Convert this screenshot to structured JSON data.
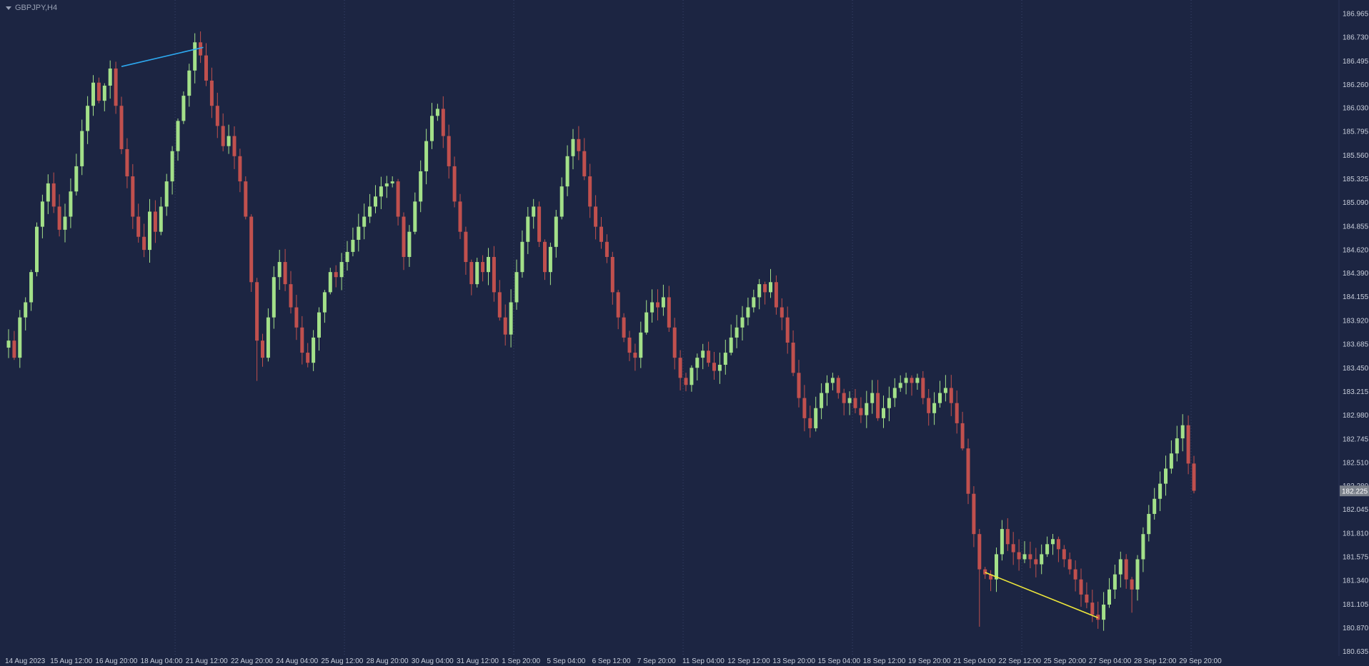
{
  "header": {
    "symbol_label": "GBPJPY,H4"
  },
  "colors": {
    "background": "#1c2542",
    "bull": "#a3e089",
    "bear": "#c0504e",
    "axis_text": "#c9cfdc",
    "separator": "#39446b",
    "axis_border": "#2a3457",
    "price_tag_bg": "#7c828c",
    "price_tag_text": "#ffffff"
  },
  "chart_data": {
    "type": "candlestick",
    "symbol": "GBPJPY",
    "timeframe": "H4",
    "title": "GBPJPY,H4",
    "visible_price_range": [
      180.59,
      187.1
    ],
    "current_price": "182.225",
    "price_axis_labels": [
      "186.965",
      "186.730",
      "186.495",
      "186.260",
      "186.030",
      "185.795",
      "185.560",
      "185.325",
      "185.090",
      "184.855",
      "184.620",
      "184.390",
      "184.155",
      "183.920",
      "183.685",
      "183.450",
      "183.215",
      "182.980",
      "182.745",
      "182.510",
      "182.280",
      "182.045",
      "181.810",
      "181.575",
      "181.340",
      "181.105",
      "180.870",
      "180.635"
    ],
    "time_axis_labels": [
      {
        "bar": 0,
        "text": "14 Aug 2023"
      },
      {
        "bar": 8,
        "text": "15 Aug 12:00"
      },
      {
        "bar": 16,
        "text": "16 Aug 20:00"
      },
      {
        "bar": 24,
        "text": "18 Aug 04:00"
      },
      {
        "bar": 32,
        "text": "21 Aug 12:00"
      },
      {
        "bar": 40,
        "text": "22 Aug 20:00"
      },
      {
        "bar": 48,
        "text": "24 Aug 04:00"
      },
      {
        "bar": 56,
        "text": "25 Aug 12:00"
      },
      {
        "bar": 64,
        "text": "28 Aug 20:00"
      },
      {
        "bar": 72,
        "text": "30 Aug 04:00"
      },
      {
        "bar": 80,
        "text": "31 Aug 12:00"
      },
      {
        "bar": 88,
        "text": "1 Sep 20:00"
      },
      {
        "bar": 96,
        "text": "5 Sep 04:00"
      },
      {
        "bar": 104,
        "text": "6 Sep 12:00"
      },
      {
        "bar": 112,
        "text": "7 Sep 20:00"
      },
      {
        "bar": 120,
        "text": "11 Sep 04:00"
      },
      {
        "bar": 128,
        "text": "12 Sep 12:00"
      },
      {
        "bar": 136,
        "text": "13 Sep 20:00"
      },
      {
        "bar": 144,
        "text": "15 Sep 04:00"
      },
      {
        "bar": 152,
        "text": "18 Sep 12:00"
      },
      {
        "bar": 160,
        "text": "19 Sep 20:00"
      },
      {
        "bar": 168,
        "text": "21 Sep 04:00"
      },
      {
        "bar": 176,
        "text": "22 Sep 12:00"
      },
      {
        "bar": 184,
        "text": "25 Sep 20:00"
      },
      {
        "bar": 192,
        "text": "27 Sep 04:00"
      },
      {
        "bar": 200,
        "text": "28 Sep 12:00"
      },
      {
        "bar": 208,
        "text": "29 Sep 20:00"
      }
    ],
    "week_separator_bars": [
      29.5,
      59.5,
      89.5,
      119.5,
      149.5,
      179.5,
      209.5
    ],
    "bars": {
      "count": 211,
      "first_open": 183.65,
      "closes": [
        183.72,
        183.55,
        183.95,
        184.1,
        184.4,
        184.85,
        185.1,
        185.28,
        185.05,
        184.82,
        184.95,
        185.2,
        185.45,
        185.8,
        186.05,
        186.28,
        186.1,
        186.25,
        186.42,
        186.05,
        185.62,
        185.35,
        184.95,
        184.75,
        184.62,
        185.0,
        184.8,
        185.05,
        185.3,
        185.6,
        185.9,
        186.15,
        186.4,
        186.68,
        186.55,
        186.3,
        186.05,
        185.85,
        185.65,
        185.75,
        185.55,
        185.3,
        184.95,
        184.3,
        183.72,
        183.55,
        183.95,
        184.35,
        184.5,
        184.28,
        184.05,
        183.85,
        183.6,
        183.5,
        183.75,
        184.0,
        184.2,
        184.4,
        184.35,
        184.5,
        184.6,
        184.72,
        184.85,
        184.95,
        185.05,
        185.15,
        185.25,
        185.28,
        185.3,
        184.95,
        184.55,
        184.8,
        185.1,
        185.4,
        185.7,
        185.95,
        186.02,
        185.75,
        185.45,
        185.1,
        184.8,
        184.5,
        184.28,
        184.5,
        184.4,
        184.55,
        184.2,
        183.95,
        183.78,
        184.1,
        184.4,
        184.7,
        184.95,
        185.05,
        184.7,
        184.4,
        184.65,
        184.95,
        185.25,
        185.55,
        185.72,
        185.6,
        185.35,
        185.05,
        184.85,
        184.7,
        184.55,
        184.2,
        183.95,
        183.75,
        183.6,
        183.55,
        183.8,
        184.0,
        184.1,
        184.05,
        184.15,
        183.85,
        183.55,
        183.35,
        183.28,
        183.45,
        183.55,
        183.62,
        183.5,
        183.42,
        183.48,
        183.6,
        183.75,
        183.85,
        183.95,
        184.05,
        184.15,
        184.28,
        184.2,
        184.3,
        184.05,
        183.95,
        183.7,
        183.4,
        183.15,
        182.95,
        182.85,
        183.05,
        183.2,
        183.3,
        183.35,
        183.2,
        183.1,
        183.15,
        183.05,
        182.98,
        183.1,
        183.2,
        182.95,
        183.05,
        183.15,
        183.25,
        183.3,
        183.35,
        183.3,
        183.35,
        183.15,
        183.0,
        183.1,
        183.2,
        183.25,
        183.1,
        182.9,
        182.65,
        182.2,
        181.8,
        181.45,
        181.4,
        181.35,
        181.6,
        181.85,
        181.7,
        181.62,
        181.55,
        181.6,
        181.55,
        181.5,
        181.6,
        181.7,
        181.75,
        181.65,
        181.55,
        181.45,
        181.35,
        181.2,
        181.12,
        181.0,
        180.95,
        181.1,
        181.25,
        181.4,
        181.55,
        181.35,
        181.25,
        181.55,
        181.8,
        182.0,
        182.15,
        182.3,
        182.45,
        182.6,
        182.75,
        182.88,
        182.5,
        182.23
      ],
      "wick_overrides": {
        "18": {
          "high": 186.5
        },
        "33": {
          "high": 186.77
        },
        "44": {
          "low": 183.32
        },
        "76": {
          "high": 186.07
        },
        "100": {
          "high": 185.82
        },
        "135": {
          "high": 184.43
        },
        "172": {
          "low": 180.88
        },
        "193": {
          "low": 180.86
        },
        "199": {
          "low": 181.02
        },
        "208": {
          "high": 182.99
        }
      }
    },
    "trendlines": [
      {
        "name": "blue-trendline",
        "from_bar": 20,
        "from_price": 186.44,
        "to_bar": 34.5,
        "to_price": 186.63,
        "color": "#2da9f0"
      },
      {
        "name": "yellow-trendline",
        "from_bar": 173,
        "from_price": 181.42,
        "to_bar": 193,
        "to_price": 180.97,
        "color": "#f0e93a"
      }
    ]
  }
}
